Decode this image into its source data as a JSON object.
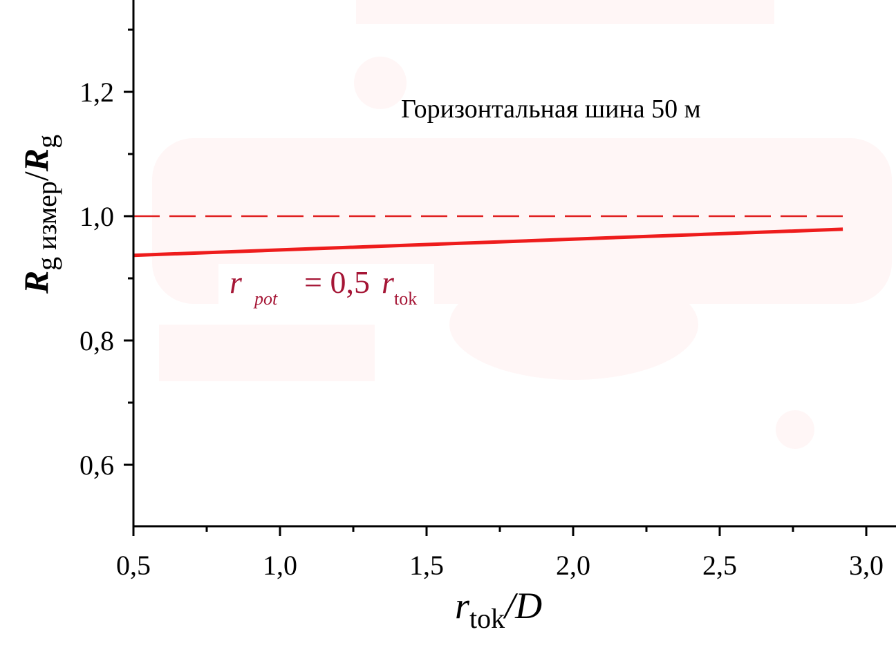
{
  "chart_data": {
    "type": "line",
    "title": "Горизонтальная шина 50 м",
    "xlabel": {
      "main": "r",
      "sub": "tok",
      "suffix": "/D"
    },
    "ylabel": {
      "main": "R",
      "sub": "g измер",
      "sep": "/",
      "main2": "R",
      "sub2": "g"
    },
    "xlim": [
      0.5,
      3.1
    ],
    "ylim": [
      0.5,
      1.35
    ],
    "x_ticks": [
      0.5,
      1.0,
      1.5,
      2.0,
      2.5,
      3.0
    ],
    "x_tick_labels": [
      "0,5",
      "1,0",
      "1,5",
      "2,0",
      "2,5",
      "3,0"
    ],
    "y_ticks": [
      0.6,
      0.8,
      1.0,
      1.2
    ],
    "y_tick_labels": [
      "0,6",
      "0,8",
      "1,0",
      "1,2"
    ],
    "grid": false,
    "series": [
      {
        "style": "solid",
        "color": "#ee1c1c",
        "x": [
          0.5,
          2.92
        ],
        "y": [
          0.937,
          0.979
        ]
      },
      {
        "style": "dashed",
        "color": "#e02020",
        "x": [
          0.5,
          2.92
        ],
        "y": [
          1.0,
          1.0
        ]
      }
    ],
    "annotation": {
      "r1": "r",
      "sub1": "pot",
      "eq": "= 0,5",
      "r2": "r",
      "sub2": "tok",
      "color": "#a51535"
    }
  }
}
